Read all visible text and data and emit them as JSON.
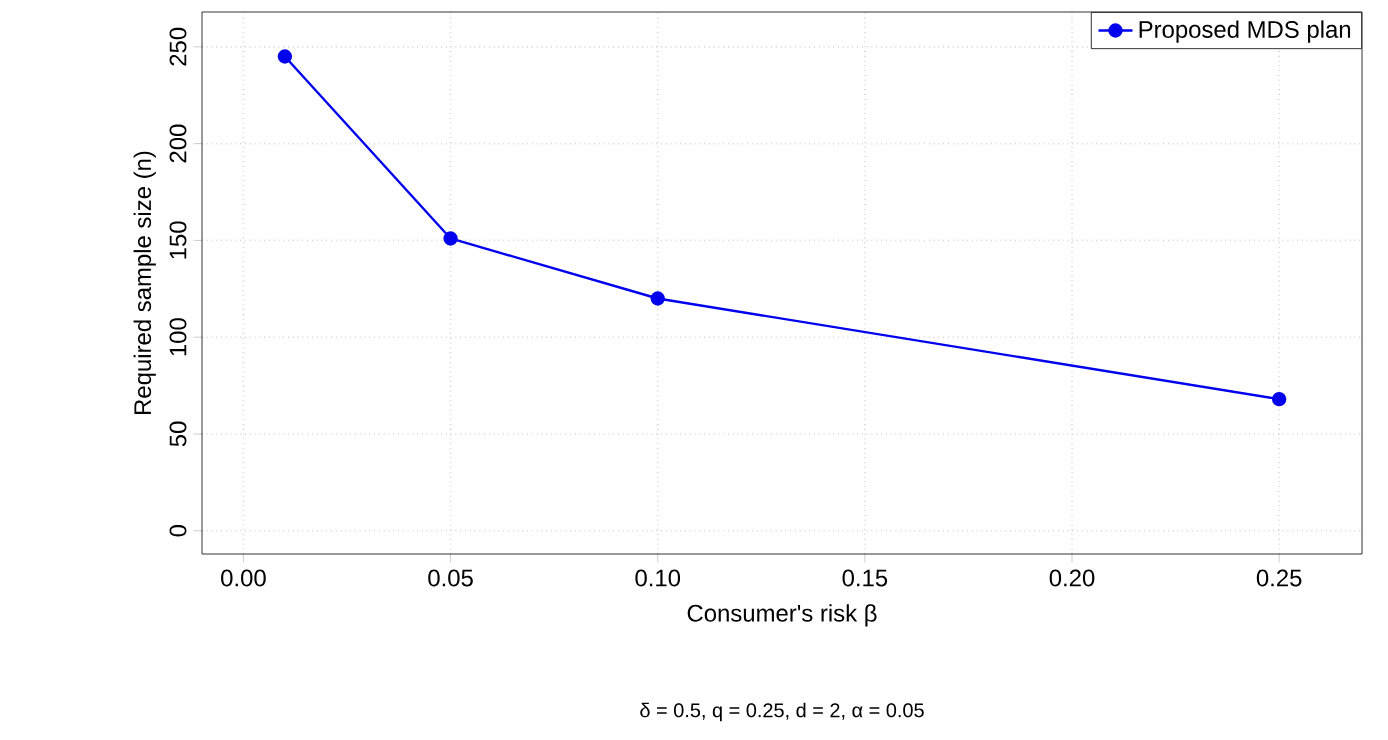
{
  "chart_data": {
    "type": "line",
    "xlabel": "Consumer's risk β",
    "ylabel": "Required sample size (n)",
    "subtitle": "δ = 0.5, q = 0.25, d = 2, α = 0.05",
    "x": [
      0.01,
      0.05,
      0.1,
      0.25
    ],
    "series": [
      {
        "name": "Proposed MDS plan",
        "color": "#0000ee",
        "values": [
          245,
          151,
          120,
          68
        ]
      }
    ],
    "xlim": [
      -0.01,
      0.27
    ],
    "ylim": [
      -12,
      268
    ],
    "xticks": [
      {
        "value": 0,
        "label": "0.00"
      },
      {
        "value": 0.05,
        "label": "0.05"
      },
      {
        "value": 0.1,
        "label": "0.10"
      },
      {
        "value": 0.15,
        "label": "0.15"
      },
      {
        "value": 0.2,
        "label": "0.20"
      },
      {
        "value": 0.25,
        "label": "0.25"
      }
    ],
    "yticks": [
      0,
      50,
      100,
      150,
      200,
      250
    ],
    "grid": true,
    "legend": "top right",
    "marker": "circle",
    "line_style": "solid"
  }
}
